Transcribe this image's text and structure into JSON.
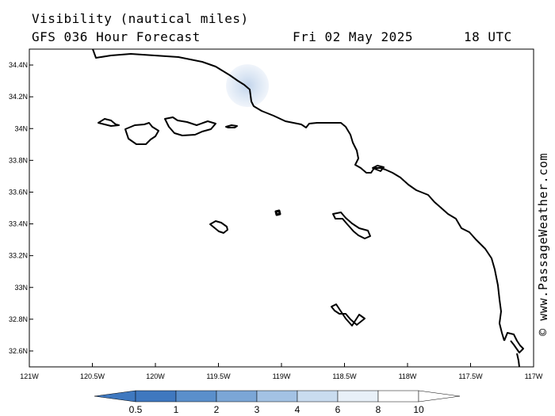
{
  "header": {
    "title": "Visibility (nautical miles)",
    "model": "GFS 036 Hour Forecast",
    "date": "Fri 02 May 2025",
    "time": "18 UTC"
  },
  "credit": "© www.PassageWeather.com",
  "axes": {
    "lat_labels": [
      "34.4N",
      "34.2N",
      "34N",
      "33.8N",
      "33.6N",
      "33.4N",
      "33.2N",
      "33N",
      "32.8N",
      "32.6N"
    ],
    "lon_labels": [
      "121W",
      "120.5W",
      "120W",
      "119.5W",
      "119W",
      "118.5W",
      "118W",
      "117.5W",
      "117W"
    ]
  },
  "colorbar": {
    "labels": [
      "0.5",
      "1",
      "2",
      "3",
      "4",
      "6",
      "8",
      "10"
    ],
    "colors": [
      "#3f78bf",
      "#3f78bf",
      "#5a8fcb",
      "#7ba6d6",
      "#a3c2e4",
      "#c9dcef",
      "#e8f0f8",
      "#ffffff",
      "#ffffff"
    ]
  },
  "chart_data": {
    "type": "heatmap",
    "title": "Visibility (nautical miles)",
    "xlim": [
      -121,
      -117
    ],
    "ylim": [
      32.5,
      34.5
    ],
    "features": [
      {
        "lon": -119.27,
        "lat": 34.27,
        "value": 8
      }
    ]
  }
}
